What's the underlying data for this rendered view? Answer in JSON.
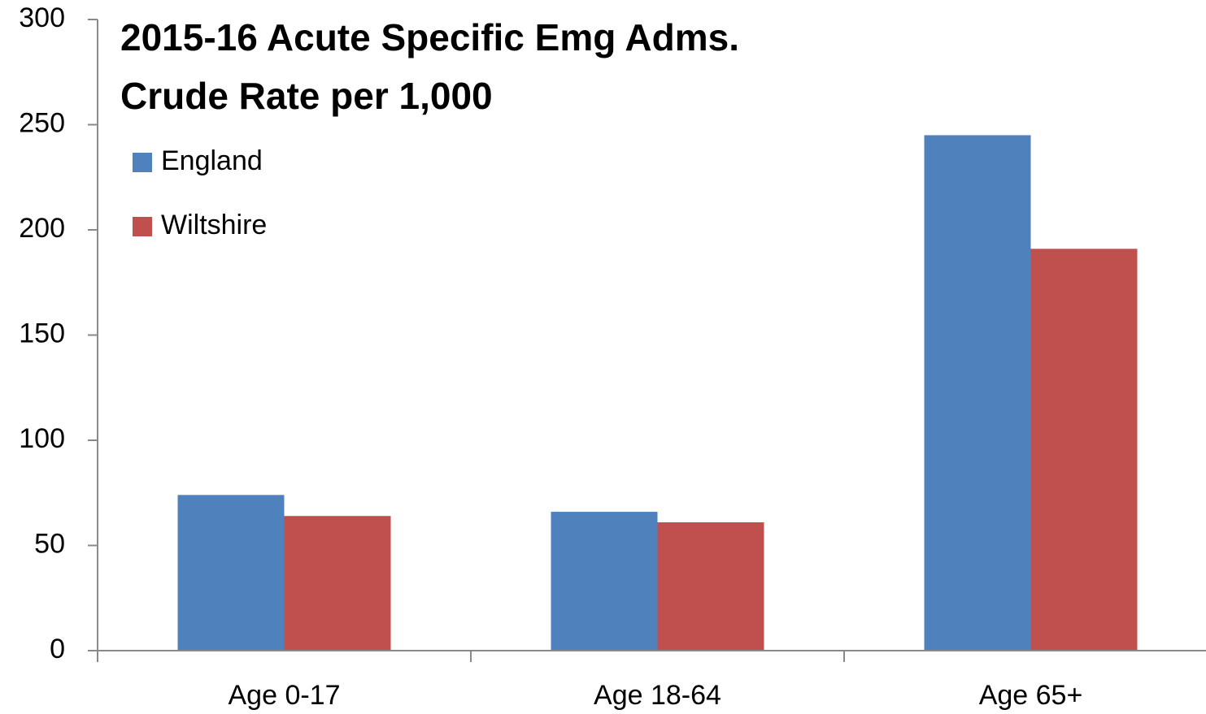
{
  "chart_data": {
    "type": "bar",
    "title": [
      "2015-16 Acute Specific Emg Adms.",
      "Crude Rate per 1,000"
    ],
    "categories": [
      "Age 0-17",
      "Age 18-64",
      "Age 65+"
    ],
    "series": [
      {
        "name": "England",
        "color": "#4f81bd",
        "values": [
          74,
          66,
          245
        ]
      },
      {
        "name": "Wiltshire",
        "color": "#c0504d",
        "values": [
          64,
          61,
          191
        ]
      }
    ],
    "ylim": [
      0,
      300
    ],
    "yticks": [
      0,
      50,
      100,
      150,
      200,
      250,
      300
    ],
    "grid": false,
    "legend": "top-left"
  }
}
